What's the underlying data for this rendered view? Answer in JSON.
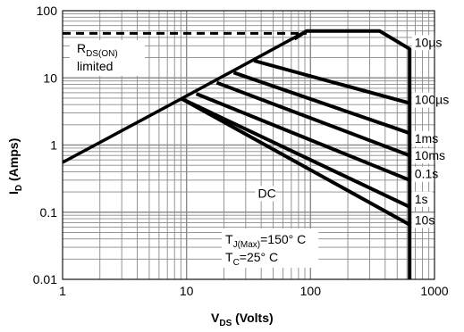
{
  "chart_data": {
    "type": "line",
    "xscale": "log",
    "yscale": "log",
    "xlim": [
      1,
      1000
    ],
    "ylim": [
      0.01,
      100
    ],
    "grid": true,
    "x_tick_labels": [
      "1",
      "10",
      "100",
      "1000"
    ],
    "y_tick_labels": [
      "100",
      "10",
      "1",
      "0.1",
      "0.01"
    ],
    "xlabel": {
      "main": "V",
      "sub": "DS",
      "rest": " (Volts)"
    },
    "ylabel": {
      "main": "I",
      "sub": "D",
      "rest": " (Amps)"
    },
    "rdson_limit": {
      "label_main": "R",
      "label_sub": "DS(ON)",
      "label_line2": "limited",
      "x": [
        1,
        9.1,
        93
      ],
      "y": [
        0.55,
        4.9,
        50
      ]
    },
    "current_limit": {
      "x": [
        1,
        93
      ],
      "y": [
        46,
        46
      ]
    },
    "series": [
      {
        "name": "10µs",
        "x": [
          74,
          93,
          360,
          630,
          630
        ],
        "y": [
          38,
          50,
          50,
          27,
          0.004
        ]
      },
      {
        "name": "100µs",
        "x": [
          35,
          630
        ],
        "y": [
          18,
          4.2
        ]
      },
      {
        "name": "1ms",
        "x": [
          24,
          630
        ],
        "y": [
          12,
          1.5
        ]
      },
      {
        "name": "10ms",
        "x": [
          17.5,
          630
        ],
        "y": [
          8.5,
          0.7
        ]
      },
      {
        "name": "0.1s",
        "x": [
          12,
          630
        ],
        "y": [
          5.8,
          0.3
        ]
      },
      {
        "name": "1s",
        "x": [
          9.1,
          630
        ],
        "y": [
          4.9,
          0.12
        ]
      },
      {
        "name": "DC",
        "x": [
          9.1,
          630
        ],
        "y": [
          4.9,
          0.065
        ]
      }
    ],
    "curve_labels": [
      {
        "text": "10µs",
        "x": 680,
        "y": 30
      },
      {
        "text": "100µs",
        "x": 680,
        "y": 4.2
      },
      {
        "text": "1ms",
        "x": 680,
        "y": 1.12
      },
      {
        "text": "10ms",
        "x": 680,
        "y": 0.62
      },
      {
        "text": "0.1s",
        "x": 680,
        "y": 0.33
      },
      {
        "text": "1s",
        "x": 680,
        "y": 0.14
      },
      {
        "text": "10s",
        "x": 680,
        "y": 0.068
      },
      {
        "text": "DC",
        "x": 37,
        "y": 0.17
      }
    ],
    "conditions": [
      {
        "main": "T",
        "sub": "J(Max)",
        "rest": "=150° C"
      },
      {
        "main": "T",
        "sub": "C",
        "rest": "=25° C"
      }
    ]
  }
}
